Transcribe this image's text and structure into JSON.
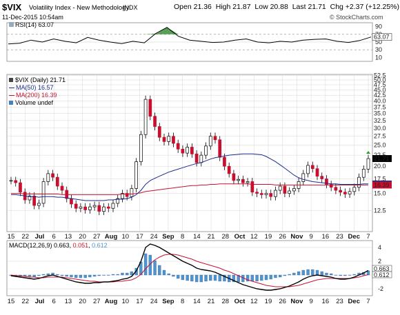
{
  "header": {
    "symbol": "$VIX",
    "name": "Volatility Index - New Methodology",
    "exchange": "INDX",
    "date": "11-Dec-2015 10:54am",
    "open_label": "Open",
    "open": "21.36",
    "high_label": "High",
    "high": "21.87",
    "low_label": "Low",
    "low": "20.88",
    "last_label": "Last",
    "last": "21.71",
    "chg_label": "Chg",
    "chg": "+2.37 (+12.25%)",
    "watermark": "© StockCharts.com"
  },
  "colors": {
    "price_line": "#000000",
    "ma50": "#1a2a8c",
    "ma200": "#c8102e",
    "volume": "#4a7fbf",
    "histogram": "#4f93cf",
    "grid": "#d6d6d6",
    "rsi_fill": "#3a8f3a"
  },
  "chart_data": [
    {
      "type": "line",
      "panel": "rsi",
      "label": "RSI(14) 63.07",
      "yticks": [
        10,
        30,
        50,
        70,
        90
      ],
      "ylim": [
        0,
        100
      ],
      "last_value": "63.07",
      "x": [
        0,
        4,
        8,
        12,
        16,
        20,
        24,
        28,
        32,
        36,
        40,
        44,
        48,
        52,
        56,
        60,
        64,
        68,
        72,
        76,
        80,
        84,
        88,
        92,
        96,
        100,
        104,
        108,
        112,
        116,
        120,
        124,
        128
      ],
      "values": [
        45,
        47,
        55,
        50,
        58,
        52,
        48,
        62,
        55,
        50,
        46,
        52,
        48,
        72,
        88,
        65,
        55,
        52,
        49,
        50,
        55,
        58,
        50,
        48,
        52,
        50,
        55,
        57,
        58,
        52,
        49,
        54,
        63
      ]
    },
    {
      "type": "line",
      "panel": "price",
      "legend": [
        "$VIX (Daily) 21.71",
        "MA(50) 16.57",
        "MA(200) 16.39",
        "Volume undef"
      ],
      "yticks": [
        "12.5",
        "15.0",
        "17.5",
        "20.0",
        "22.5",
        "25.0",
        "27.5",
        "30.0",
        "32.5",
        "35.0",
        "37.5",
        "40.0",
        "42.5",
        "45.0",
        "47.5",
        "50.0",
        "52.5"
      ],
      "ylim": [
        10,
        53
      ],
      "log_scale": true,
      "last_price_tag": "21.71",
      "ma50_tag": "16.57",
      "ma200_tag": "16.39",
      "x_ticks": [
        "15",
        "22",
        "Jul",
        "6",
        "13",
        "20",
        "27",
        "Aug",
        "10",
        "17",
        "24",
        "Sep",
        "8",
        "14",
        "21",
        "28",
        "Oct",
        "12",
        "19",
        "26",
        "Nov",
        "9",
        "16",
        "23",
        "Dec",
        "7"
      ],
      "price": [
        17.2,
        16.8,
        15.2,
        14.0,
        14.6,
        13.2,
        13.5,
        17.0,
        18.5,
        17.8,
        16.2,
        15.5,
        14.2,
        13.4,
        12.8,
        13.0,
        12.6,
        13.0,
        13.2,
        12.4,
        13.0,
        12.8,
        13.5,
        14.2,
        15.0,
        14.5,
        15.8,
        21.0,
        28.0,
        40.7,
        34.0,
        30.5,
        27.2,
        26.0,
        27.5,
        25.5,
        24.0,
        23.0,
        24.5,
        22.8,
        20.8,
        22.5,
        24.8,
        27.5,
        26.5,
        22.0,
        20.0,
        18.5,
        17.2,
        17.4,
        16.8,
        17.0,
        15.2,
        15.0,
        14.8,
        15.0,
        14.5,
        15.5,
        16.2,
        15.0,
        15.4,
        15.8,
        17.0,
        18.5,
        20.2,
        19.5,
        18.0,
        17.5,
        16.5,
        16.0,
        15.5,
        15.2,
        14.9,
        15.3,
        16.0,
        17.8,
        19.4,
        21.7
      ],
      "ma50": [
        14.8,
        14.8,
        14.7,
        14.6,
        14.5,
        14.5,
        14.4,
        14.5,
        14.5,
        14.5,
        14.4,
        14.4,
        14.3,
        14.2,
        14.1,
        14.0,
        13.9,
        13.9,
        13.9,
        13.9,
        13.9,
        14.0,
        14.0,
        14.1,
        14.1,
        14.2,
        14.4,
        14.8,
        15.5,
        16.5,
        17.2,
        17.6,
        18.0,
        18.4,
        18.8,
        19.1,
        19.4,
        19.7,
        20.0,
        20.3,
        20.6,
        20.8,
        21.2,
        21.6,
        21.9,
        22.1,
        22.3,
        22.5,
        22.6,
        22.7,
        22.8,
        22.8,
        22.8,
        22.7,
        22.6,
        22.2,
        21.6,
        21.0,
        20.3,
        19.6,
        18.9,
        18.2,
        17.7,
        17.4,
        17.2,
        17.0,
        16.9,
        16.8,
        16.7,
        16.6,
        16.6,
        16.5,
        16.5,
        16.5,
        16.5,
        16.5,
        16.6,
        16.6
      ],
      "ma200": [
        15.0,
        15.0,
        15.0,
        14.9,
        14.9,
        14.9,
        14.9,
        14.9,
        14.9,
        14.9,
        14.9,
        14.8,
        14.8,
        14.8,
        14.8,
        14.8,
        14.8,
        14.8,
        14.8,
        14.8,
        14.8,
        14.8,
        14.8,
        14.8,
        14.9,
        14.9,
        14.9,
        15.0,
        15.1,
        15.3,
        15.4,
        15.5,
        15.6,
        15.7,
        15.8,
        15.9,
        16.0,
        16.1,
        16.2,
        16.3,
        16.3,
        16.4,
        16.4,
        16.5,
        16.5,
        16.6,
        16.6,
        16.6,
        16.6,
        16.6,
        16.6,
        16.6,
        16.5,
        16.5,
        16.5,
        16.5,
        16.5,
        16.4,
        16.4,
        16.4,
        16.4,
        16.4,
        16.4,
        16.4,
        16.4,
        16.4,
        16.4,
        16.4,
        16.4,
        16.4,
        16.4,
        16.4,
        16.4,
        16.4,
        16.4,
        16.4,
        16.4,
        16.4
      ]
    },
    {
      "type": "line",
      "panel": "macd",
      "label": "MACD(12,26,9) 0.663, 0.051, 0.612",
      "label_parts": [
        "MACD(12,26,9)",
        "0.663",
        "0.051",
        "0.612"
      ],
      "yticks": [
        "4",
        "2",
        "0",
        "-2"
      ],
      "ylim": [
        -3,
        5
      ],
      "macd_tag": "0.663",
      "hist_tag": "0.612",
      "macd": [
        -0.1,
        -0.2,
        -0.3,
        -0.4,
        -0.5,
        -0.6,
        -0.5,
        -0.3,
        -0.1,
        0.0,
        -0.2,
        -0.4,
        -0.6,
        -0.8,
        -1.0,
        -1.1,
        -1.2,
        -1.2,
        -1.1,
        -1.1,
        -1.0,
        -1.0,
        -0.9,
        -0.8,
        -0.6,
        -0.5,
        -0.2,
        0.6,
        2.0,
        4.0,
        4.5,
        4.3,
        4.0,
        3.6,
        3.2,
        2.8,
        2.4,
        2.0,
        1.7,
        1.4,
        1.0,
        0.8,
        0.7,
        0.6,
        0.4,
        0.1,
        -0.2,
        -0.5,
        -0.8,
        -1.1,
        -1.4,
        -1.6,
        -1.8,
        -2.0,
        -2.1,
        -2.2,
        -2.2,
        -2.1,
        -2.0,
        -1.8,
        -1.6,
        -1.3,
        -1.0,
        -0.6,
        -0.3,
        -0.1,
        0.0,
        -0.1,
        -0.2,
        -0.3,
        -0.5,
        -0.6,
        -0.6,
        -0.5,
        -0.3,
        0.0,
        0.3,
        0.66
      ],
      "signal": [
        0.0,
        -0.1,
        -0.1,
        -0.2,
        -0.3,
        -0.3,
        -0.4,
        -0.4,
        -0.3,
        -0.3,
        -0.3,
        -0.3,
        -0.4,
        -0.5,
        -0.6,
        -0.7,
        -0.8,
        -0.9,
        -0.9,
        -1.0,
        -1.0,
        -1.0,
        -1.0,
        -0.9,
        -0.9,
        -0.8,
        -0.7,
        -0.4,
        0.1,
        0.9,
        1.6,
        2.2,
        2.6,
        2.9,
        3.0,
        3.0,
        2.9,
        2.7,
        2.5,
        2.3,
        2.0,
        1.8,
        1.6,
        1.4,
        1.2,
        1.0,
        0.7,
        0.5,
        0.2,
        -0.1,
        -0.4,
        -0.7,
        -0.9,
        -1.1,
        -1.3,
        -1.5,
        -1.6,
        -1.7,
        -1.7,
        -1.7,
        -1.7,
        -1.6,
        -1.5,
        -1.3,
        -1.1,
        -0.9,
        -0.7,
        -0.6,
        -0.5,
        -0.5,
        -0.5,
        -0.5,
        -0.5,
        -0.5,
        -0.4,
        -0.3,
        -0.1,
        0.05
      ]
    }
  ]
}
